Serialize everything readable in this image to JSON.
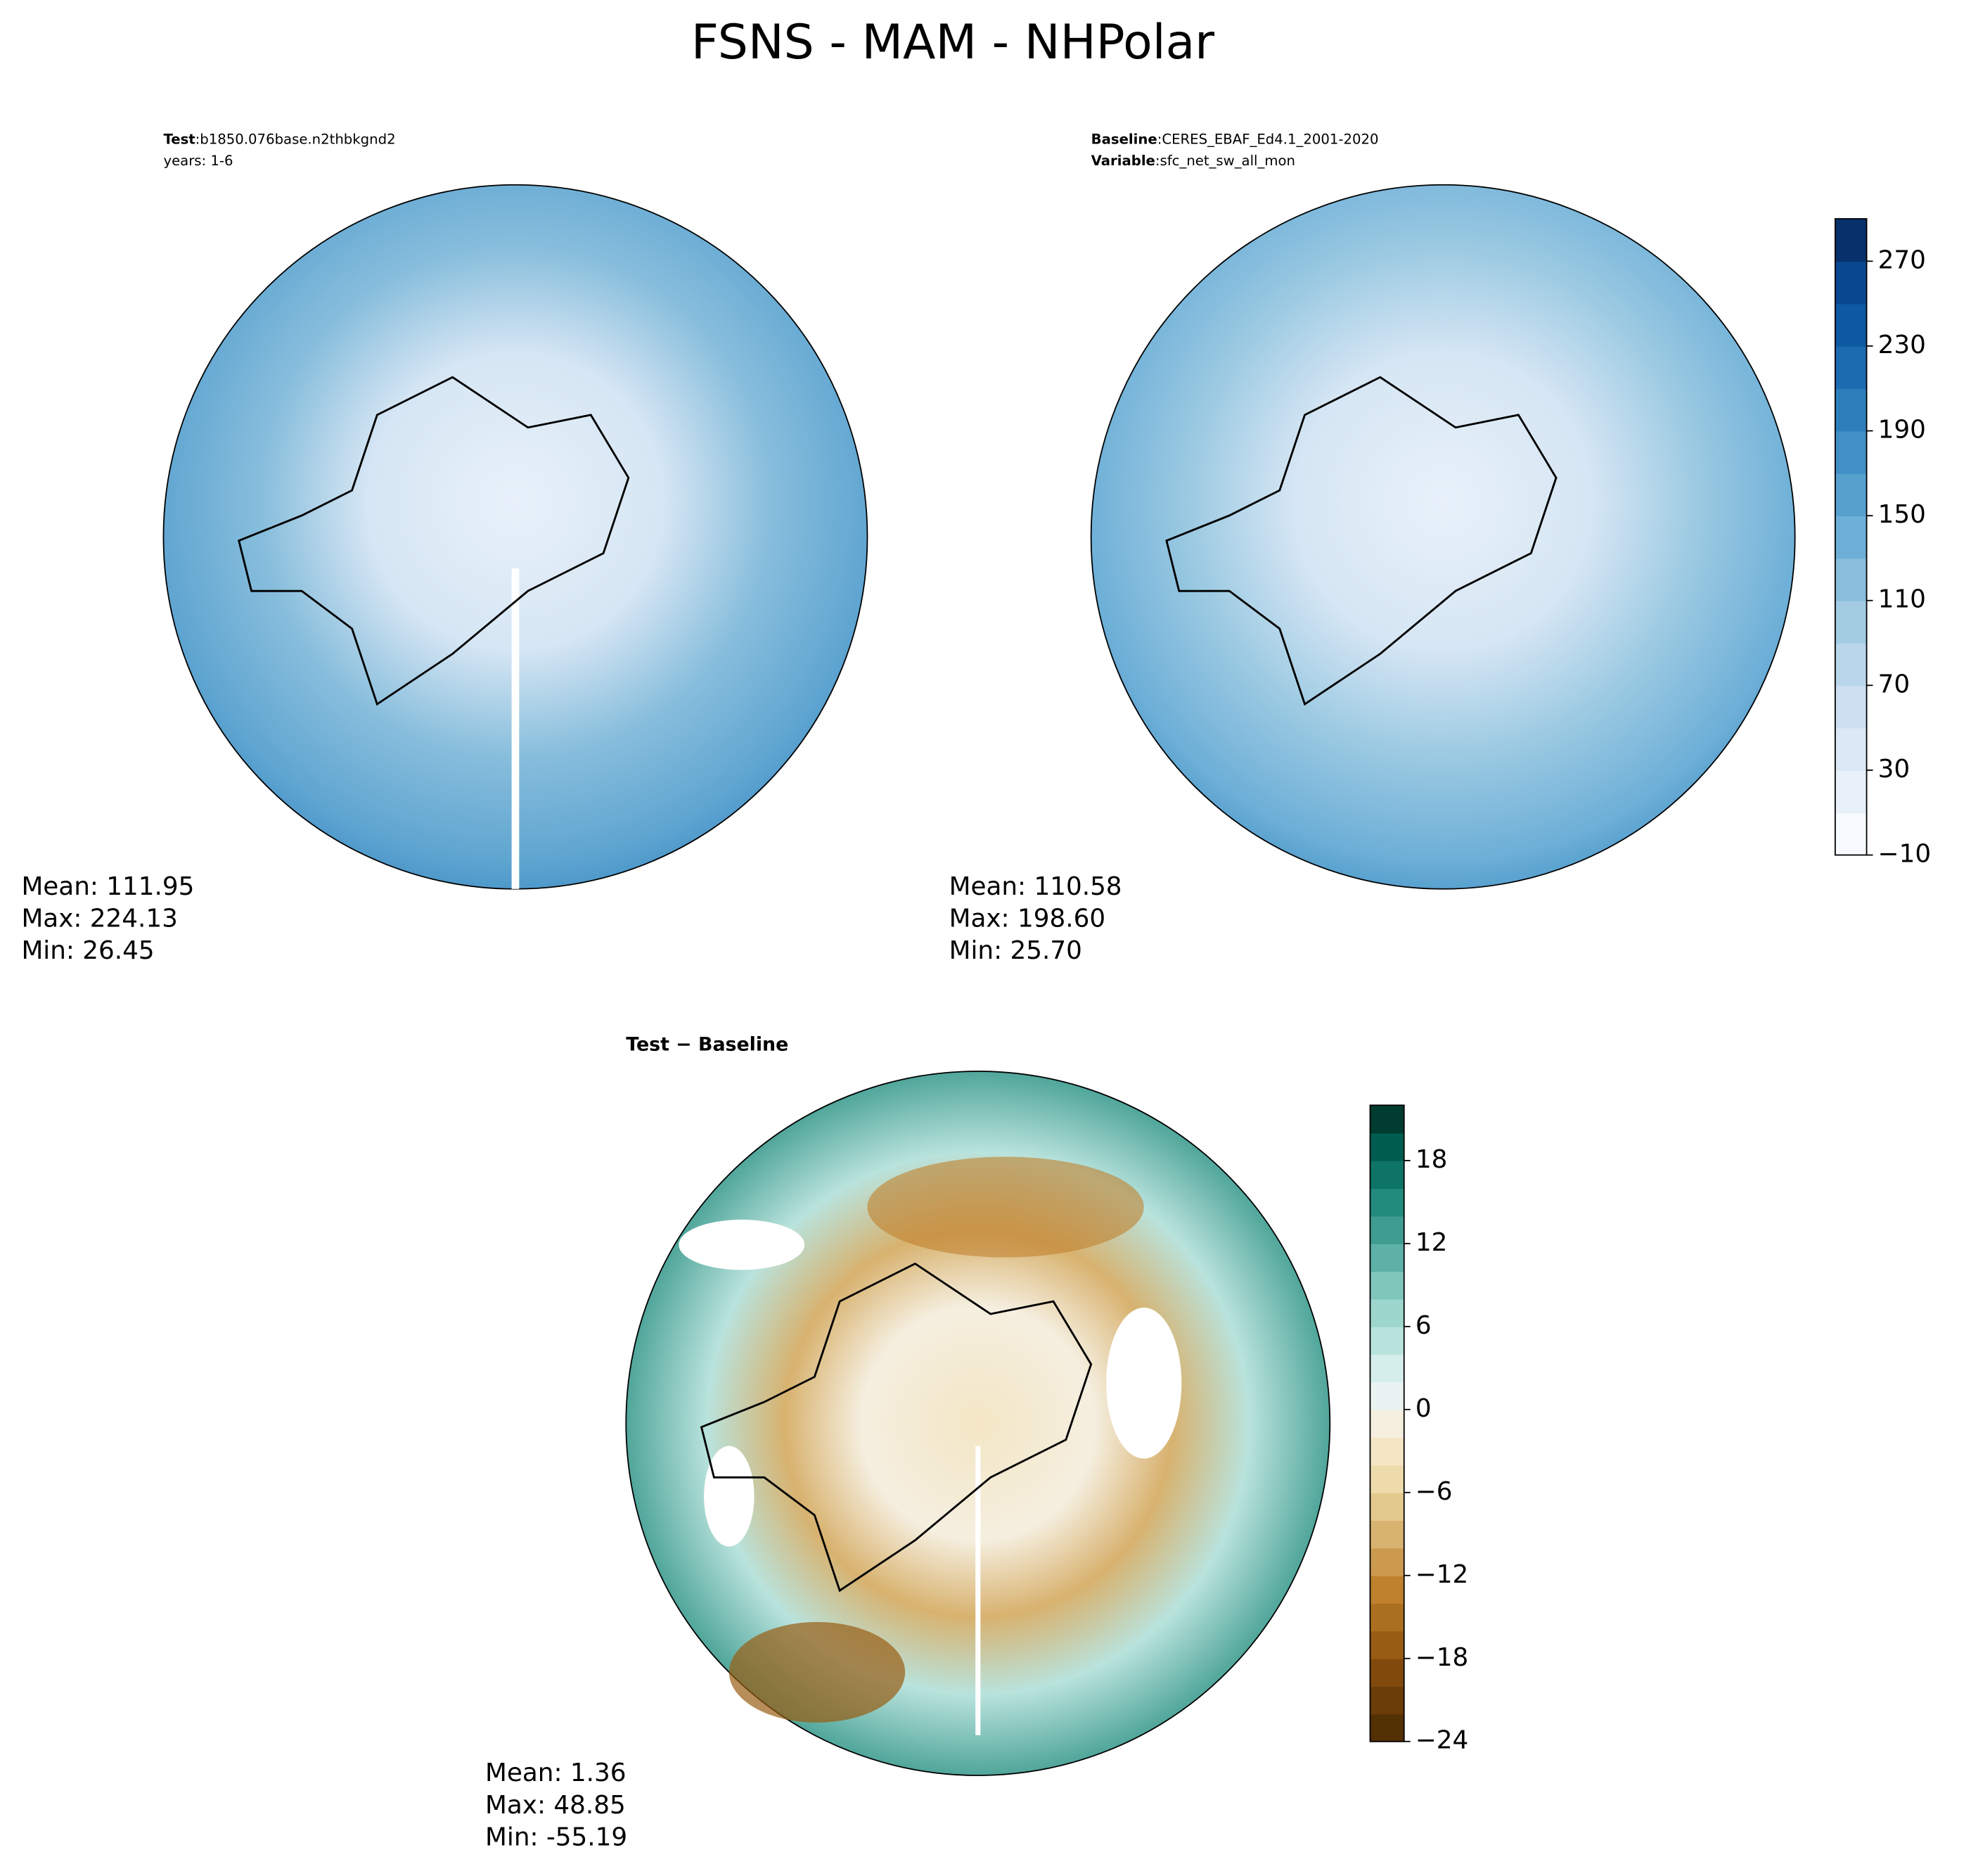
{
  "title": "FSNS - MAM - NHPolar",
  "panels": [
    {
      "header": [
        {
          "key": "Test",
          "text": ":b1850.076base.n2thbkgnd2"
        },
        {
          "text": "years: 1-6"
        }
      ],
      "stats": [
        "Mean: 111.95",
        "Max: 224.13",
        "Min: 26.45"
      ]
    },
    {
      "header": [
        {
          "key": "Baseline",
          "text": ":CERES_EBAF_Ed4.1_2001-2020"
        },
        {
          "key": "Variable",
          "text": ":sfc_net_sw_all_mon"
        }
      ],
      "stats": [
        "Mean: 110.58",
        "Max: 198.60",
        "Min: 25.70"
      ]
    },
    {
      "header": [
        {
          "key": "Test − Baseline"
        }
      ],
      "stats": [
        "Mean:  1.36",
        "Max: 48.85",
        "Min: -55.19"
      ]
    }
  ],
  "colorbars": [
    {
      "lim": [
        -10,
        290
      ],
      "ticks": [
        {
          "value": -10,
          "label": "−10"
        },
        30,
        70,
        110,
        150,
        190,
        230,
        270
      ],
      "colors": [
        "#f7fbff",
        "#e8f1fa",
        "#dbe9f6",
        "#cde0f1",
        "#bad6eb",
        "#a3cce3",
        "#88bedc",
        "#6dafd7",
        "#56a0ce",
        "#4090c5",
        "#2e7ebc",
        "#1c6ab0",
        "#0e59a2",
        "#084890",
        "#08306b"
      ]
    },
    {
      "lim": [
        -24,
        22
      ],
      "ticks": [
        {
          "value": -24,
          "label": "−24"
        },
        {
          "value": -18,
          "label": "−18"
        },
        {
          "value": -12,
          "label": "−12"
        },
        {
          "value": -6,
          "label": "−6"
        },
        0,
        6,
        12,
        18
      ],
      "colors": [
        "#543005",
        "#6b3d08",
        "#814a0c",
        "#985c13",
        "#ab701f",
        "#bf812d",
        "#cc9a4f",
        "#d8b26f",
        "#e4c98f",
        "#eedbab",
        "#f4e6c5",
        "#f5efe0",
        "#eaf3f1",
        "#d5eeeb",
        "#b9e3dd",
        "#9cd6cd",
        "#7fc6bb",
        "#5eb1a6",
        "#3f9c91",
        "#238b7d",
        "#0d7466",
        "#015d4f",
        "#003c30"
      ]
    }
  ]
}
